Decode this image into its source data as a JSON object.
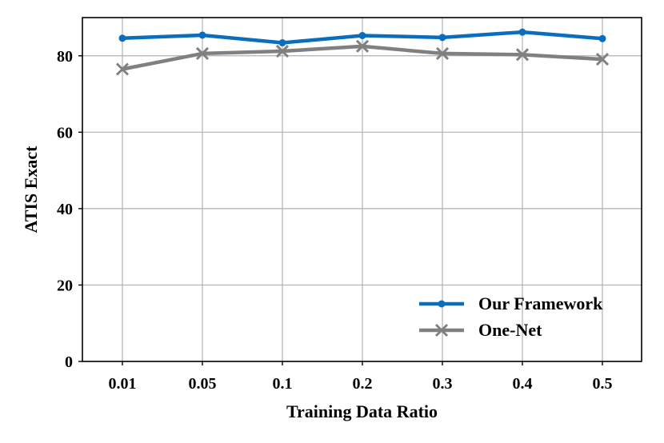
{
  "chart_data": {
    "type": "line",
    "categories": [
      "0.01",
      "0.05",
      "0.1",
      "0.2",
      "0.3",
      "0.4",
      "0.5"
    ],
    "xlabel": "Training Data Ratio",
    "ylabel": "ATIS Exact",
    "ylim": [
      0,
      90
    ],
    "yticks": [
      0,
      20,
      40,
      60,
      80
    ],
    "grid": true,
    "legend_position": "bottom-right",
    "series": [
      {
        "name": "Our Framework",
        "color": "#0a6ebd",
        "marker": "circle",
        "values": [
          84.6,
          85.4,
          83.4,
          85.3,
          84.8,
          86.2,
          84.5
        ]
      },
      {
        "name": "One-Net",
        "color": "#808080",
        "marker": "x",
        "values": [
          76.5,
          80.6,
          81.2,
          82.5,
          80.6,
          80.3,
          79.1
        ]
      }
    ]
  }
}
